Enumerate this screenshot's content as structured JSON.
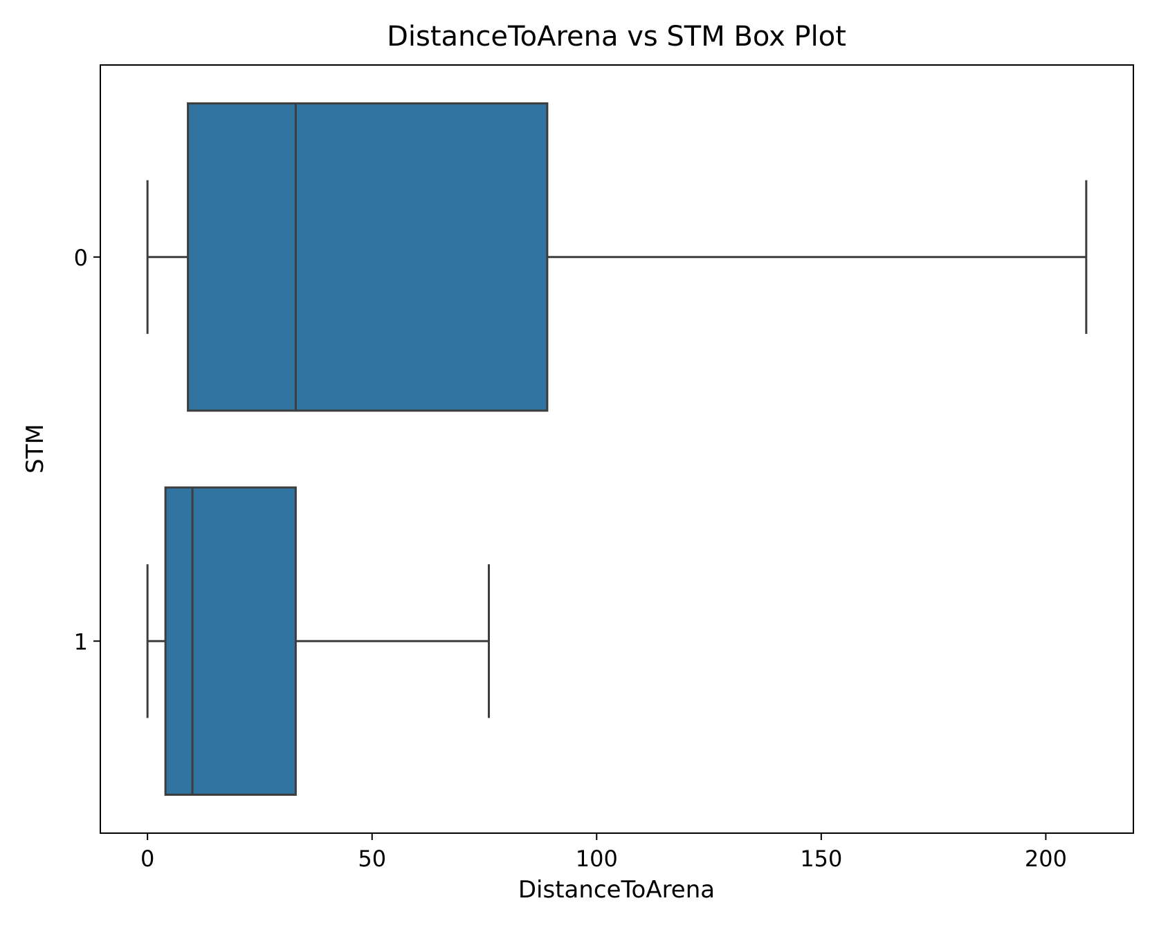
{
  "chart_data": {
    "type": "boxplot",
    "orientation": "horizontal",
    "title": "DistanceToArena vs STM Box Plot",
    "xlabel": "DistanceToArena",
    "ylabel": "STM",
    "xlim": [
      -10.5,
      219.5
    ],
    "xticks": [
      0,
      50,
      100,
      150,
      200
    ],
    "xtick_labels": [
      "0",
      "50",
      "100",
      "150",
      "200"
    ],
    "categories": [
      "0",
      "1"
    ],
    "grid": false,
    "legend": "none",
    "box_color": "#3274a1",
    "line_color": "#3d3d3d",
    "boxes": [
      {
        "category": "0",
        "whisker_low": 0,
        "q1": 9,
        "median": 33,
        "q3": 89,
        "whisker_high": 209
      },
      {
        "category": "1",
        "whisker_low": 0,
        "q1": 4,
        "median": 10,
        "q3": 33,
        "whisker_high": 76
      }
    ]
  }
}
